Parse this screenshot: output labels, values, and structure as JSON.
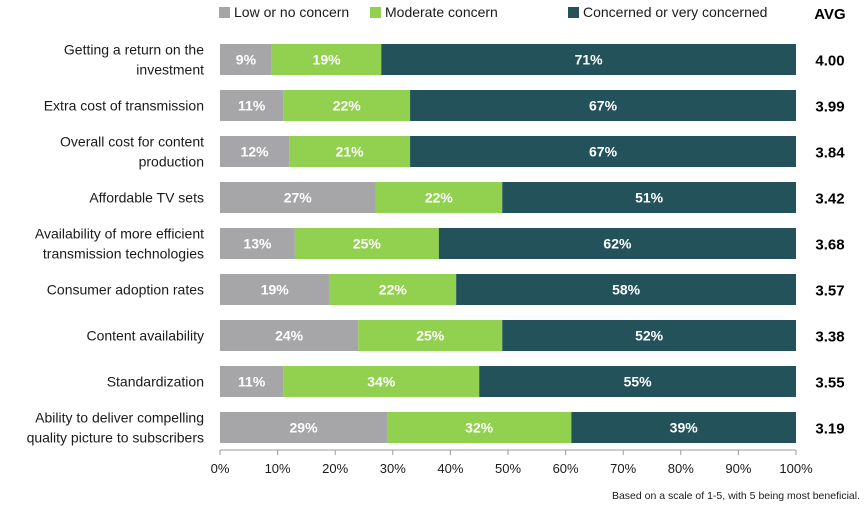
{
  "chart_data": {
    "type": "bar",
    "orientation": "horizontal",
    "stacked": true,
    "avg_header": "AVG",
    "categories": [
      [
        "Getting a return on the",
        "investment"
      ],
      [
        "Extra cost of transmission"
      ],
      [
        "Overall cost for content",
        "production"
      ],
      [
        "Affordable TV sets"
      ],
      [
        "Availability of more efficient",
        "transmission technologies"
      ],
      [
        "Consumer adoption rates"
      ],
      [
        "Content availability"
      ],
      [
        "Standardization"
      ],
      [
        "Ability to deliver compelling",
        "quality picture to subscribers"
      ]
    ],
    "series": [
      {
        "name": "Low or no concern",
        "color": "#a6a6a8",
        "values": [
          9,
          11,
          12,
          27,
          13,
          19,
          24,
          11,
          29
        ]
      },
      {
        "name": "Moderate concern",
        "color": "#92d050",
        "values": [
          19,
          22,
          21,
          22,
          25,
          22,
          25,
          34,
          32
        ]
      },
      {
        "name": "Concerned or very concerned",
        "color": "#23525a",
        "values": [
          71,
          67,
          67,
          51,
          62,
          58,
          52,
          55,
          39
        ]
      }
    ],
    "avg": [
      "4.00",
      "3.99",
      "3.84",
      "3.42",
      "3.68",
      "3.57",
      "3.38",
      "3.55",
      "3.19"
    ],
    "xlim": [
      0,
      100
    ],
    "x_ticks": [
      "0%",
      "10%",
      "20%",
      "30%",
      "40%",
      "50%",
      "60%",
      "70%",
      "80%",
      "90%",
      "100%"
    ],
    "legend_position": "top",
    "grid": false
  },
  "footnote": "Based on a scale of 1-5, with 5 being most beneficial."
}
